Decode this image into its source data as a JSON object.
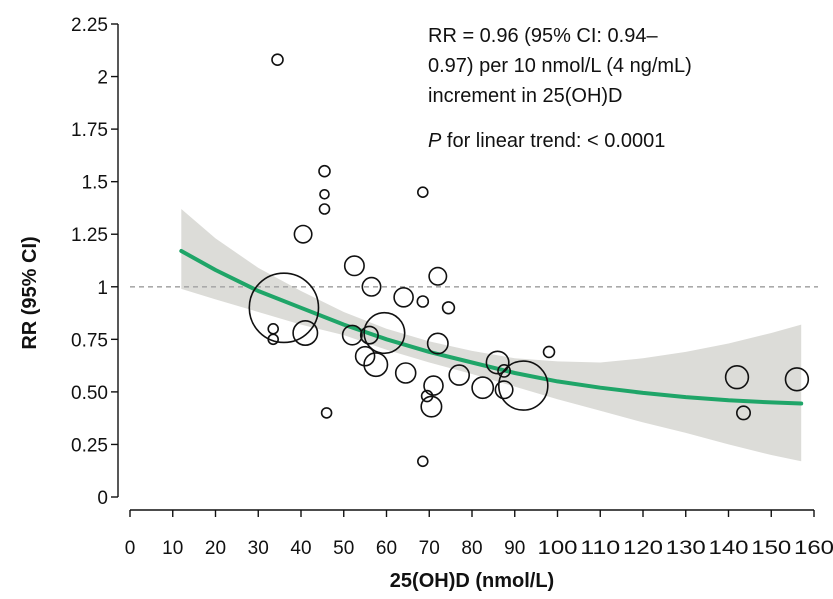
{
  "chart_data": {
    "type": "scatter",
    "title": "",
    "xlabel": "25(OH)D (nmol/L)",
    "ylabel": "RR (95% CI)",
    "xlim": [
      0,
      160
    ],
    "ylim": [
      0,
      2.25
    ],
    "x_ticks": [
      0,
      10,
      20,
      30,
      40,
      50,
      60,
      70,
      80,
      90,
      100,
      110,
      120,
      130,
      140,
      150,
      160
    ],
    "x_tick_labels": [
      "0",
      "10",
      "20",
      "30",
      "40",
      "50",
      "60",
      "70",
      "80",
      "90",
      "100",
      "110",
      "120",
      "130",
      "140",
      "150",
      "160"
    ],
    "y_ticks": [
      0,
      0.25,
      0.5,
      0.75,
      1,
      1.25,
      1.5,
      1.75,
      2,
      2.25
    ],
    "y_tick_labels": [
      "0",
      "0.25",
      "0.50",
      "0.75",
      "1",
      "1.25",
      "1.5",
      "1.75",
      "2",
      "2.25"
    ],
    "grid": false,
    "reference_line": {
      "y": 1,
      "style": "dashed",
      "color": "#aaaaaa"
    },
    "annotation_lines": [
      "RR = 0.96 (95% CI: 0.94–",
      "0.97) per 10 nmol/L (4 ng/mL)",
      "increment in 25(OH)D"
    ],
    "trend_label": {
      "prefix": "P",
      "text": " for linear trend: < 0.0001"
    },
    "points": [
      {
        "x": 34.5,
        "y": 2.08,
        "w": 1.2
      },
      {
        "x": 45.5,
        "y": 1.55,
        "w": 1.2
      },
      {
        "x": 45.5,
        "y": 1.44,
        "w": 0.8
      },
      {
        "x": 45.5,
        "y": 1.37,
        "w": 1.0
      },
      {
        "x": 68.5,
        "y": 1.45,
        "w": 1.0
      },
      {
        "x": 40.5,
        "y": 1.25,
        "w": 3.0
      },
      {
        "x": 52.5,
        "y": 1.1,
        "w": 3.8
      },
      {
        "x": 56.5,
        "y": 1.0,
        "w": 3.4
      },
      {
        "x": 72.0,
        "y": 1.05,
        "w": 3.0
      },
      {
        "x": 64.0,
        "y": 0.95,
        "w": 3.6
      },
      {
        "x": 68.5,
        "y": 0.93,
        "w": 1.2
      },
      {
        "x": 74.5,
        "y": 0.9,
        "w": 1.4
      },
      {
        "x": 36.0,
        "y": 0.9,
        "w": 48
      },
      {
        "x": 33.5,
        "y": 0.8,
        "w": 1.0
      },
      {
        "x": 33.5,
        "y": 0.75,
        "w": 1.0
      },
      {
        "x": 41.0,
        "y": 0.78,
        "w": 6.0
      },
      {
        "x": 52.0,
        "y": 0.77,
        "w": 3.8
      },
      {
        "x": 56.0,
        "y": 0.77,
        "w": 3.0
      },
      {
        "x": 59.5,
        "y": 0.78,
        "w": 16.5
      },
      {
        "x": 72.0,
        "y": 0.73,
        "w": 4.2
      },
      {
        "x": 98.0,
        "y": 0.69,
        "w": 1.2
      },
      {
        "x": 55.0,
        "y": 0.67,
        "w": 3.6
      },
      {
        "x": 57.5,
        "y": 0.63,
        "w": 5.5
      },
      {
        "x": 64.5,
        "y": 0.59,
        "w": 4.0
      },
      {
        "x": 86.0,
        "y": 0.64,
        "w": 5.0
      },
      {
        "x": 87.5,
        "y": 0.6,
        "w": 1.5
      },
      {
        "x": 77.0,
        "y": 0.58,
        "w": 4.0
      },
      {
        "x": 82.5,
        "y": 0.52,
        "w": 4.5
      },
      {
        "x": 87.5,
        "y": 0.51,
        "w": 3.0
      },
      {
        "x": 92.0,
        "y": 0.53,
        "w": 24
      },
      {
        "x": 71.0,
        "y": 0.53,
        "w": 3.6
      },
      {
        "x": 69.5,
        "y": 0.48,
        "w": 1.2
      },
      {
        "x": 70.5,
        "y": 0.43,
        "w": 4.2
      },
      {
        "x": 46.0,
        "y": 0.4,
        "w": 1.0
      },
      {
        "x": 68.5,
        "y": 0.17,
        "w": 1.0
      },
      {
        "x": 142.0,
        "y": 0.57,
        "w": 5.2
      },
      {
        "x": 143.5,
        "y": 0.4,
        "w": 1.8
      },
      {
        "x": 156.0,
        "y": 0.56,
        "w": 5.2
      }
    ],
    "fit_line": {
      "color": "#1fa568",
      "x": [
        12,
        20,
        30,
        40,
        50,
        60,
        70,
        80,
        90,
        100,
        110,
        120,
        130,
        140,
        150,
        157
      ],
      "y": [
        1.17,
        1.08,
        0.98,
        0.9,
        0.82,
        0.75,
        0.69,
        0.64,
        0.59,
        0.55,
        0.52,
        0.495,
        0.475,
        0.46,
        0.45,
        0.445
      ]
    },
    "ci_band": {
      "color": "#dcdcd8",
      "x": [
        12,
        20,
        30,
        40,
        50,
        60,
        70,
        80,
        90,
        100,
        110,
        120,
        130,
        140,
        150,
        157
      ],
      "upper": [
        1.37,
        1.23,
        1.09,
        0.98,
        0.88,
        0.8,
        0.74,
        0.695,
        0.66,
        0.645,
        0.64,
        0.66,
        0.69,
        0.73,
        0.78,
        0.82
      ],
      "lower": [
        0.99,
        0.94,
        0.88,
        0.82,
        0.77,
        0.7,
        0.64,
        0.585,
        0.525,
        0.465,
        0.41,
        0.355,
        0.305,
        0.25,
        0.2,
        0.17
      ]
    }
  }
}
